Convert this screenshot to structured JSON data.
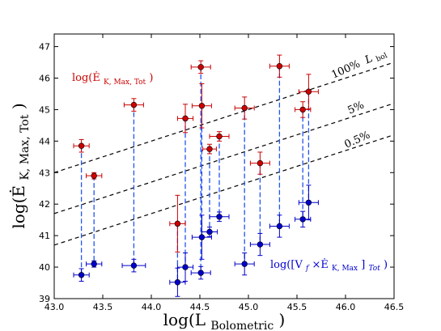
{
  "chart_data": {
    "type": "scatter",
    "xlabel": "log(L",
    "xlabel_sub": "Bolometric",
    "xlabel_close": ")",
    "ylabel": "log(Ė",
    "ylabel_sub": "K, Max, Tot",
    "ylabel_close": ")",
    "xlim": [
      43.0,
      46.5
    ],
    "ylim": [
      39,
      47.4
    ],
    "xticks": [
      43.0,
      43.5,
      44.0,
      44.5,
      45.0,
      45.5,
      46.0,
      46.5
    ],
    "xtick_labels": [
      "43.0",
      "43.5",
      "44.0",
      "44.5",
      "45.0",
      "45.5",
      "46.0",
      "46.5"
    ],
    "yticks": [
      39,
      40,
      41,
      42,
      43,
      44,
      45,
      46,
      47
    ],
    "ytick_labels": [
      "39",
      "40",
      "41",
      "42",
      "43",
      "44",
      "45",
      "46",
      "47"
    ],
    "grid": false,
    "colors": {
      "red_series": "#cc0000",
      "blue_series": "#0000cc",
      "connector": "#2255ee",
      "reference": "#000000"
    },
    "annotations": {
      "red_label": {
        "main": "log(Ė",
        "sub": "K, Max, Tot",
        "close": ")"
      },
      "blue_label": {
        "main": "log([V",
        "sub1": "f",
        "mid": " ×Ė",
        "sub2": "K, Max",
        "close": "]",
        "sub3": "Tot",
        "end": ")"
      }
    },
    "reference_lines": [
      {
        "label": "100%",
        "sym": "L",
        "sub": "bol",
        "y_at_43": 43.0,
        "y_at_46_5": 46.5
      },
      {
        "label": "5%",
        "y_at_43": 41.7,
        "y_at_46_5": 45.2
      },
      {
        "label": "0.5%",
        "y_at_43": 40.7,
        "y_at_46_5": 44.2
      }
    ],
    "series": [
      {
        "color": "red",
        "points": [
          {
            "x": 43.28,
            "y": 43.85,
            "xerr": 0.08,
            "yerr": 0.2
          },
          {
            "x": 43.41,
            "y": 42.9,
            "xerr": 0.08,
            "yerr": 0.1
          },
          {
            "x": 43.82,
            "y": 45.15,
            "xerr": 0.1,
            "yerr": 0.2
          },
          {
            "x": 44.27,
            "y": 41.38,
            "xerr": 0.08,
            "yerr": 0.9
          },
          {
            "x": 44.35,
            "y": 44.72,
            "xerr": 0.08,
            "yerr": 0.45
          },
          {
            "x": 44.51,
            "y": 46.35,
            "xerr": 0.1,
            "yerr": 0.2
          },
          {
            "x": 44.52,
            "y": 45.12,
            "xerr": 0.1,
            "yerr": 0.7
          },
          {
            "x": 44.6,
            "y": 43.75,
            "xerr": 0.07,
            "yerr": 0.15
          },
          {
            "x": 44.7,
            "y": 44.15,
            "xerr": 0.1,
            "yerr": 0.15
          },
          {
            "x": 44.96,
            "y": 45.05,
            "xerr": 0.1,
            "yerr": 0.35
          },
          {
            "x": 45.12,
            "y": 43.3,
            "xerr": 0.1,
            "yerr": 0.35
          },
          {
            "x": 45.32,
            "y": 46.38,
            "xerr": 0.1,
            "yerr": 0.35
          },
          {
            "x": 45.56,
            "y": 45.0,
            "xerr": 0.08,
            "yerr": 0.25
          },
          {
            "x": 45.62,
            "y": 45.57,
            "xerr": 0.1,
            "yerr": 0.55
          }
        ]
      },
      {
        "color": "blue",
        "points": [
          {
            "x": 43.28,
            "y": 39.75,
            "xerr": 0.08,
            "yerr": 0.2
          },
          {
            "x": 43.41,
            "y": 40.1,
            "xerr": 0.08,
            "yerr": 0.1
          },
          {
            "x": 43.82,
            "y": 40.05,
            "xerr": 0.12,
            "yerr": 0.2
          },
          {
            "x": 44.27,
            "y": 39.52,
            "xerr": 0.08,
            "yerr": 0.45
          },
          {
            "x": 44.35,
            "y": 40.0,
            "xerr": 0.08,
            "yerr": 0.45
          },
          {
            "x": 44.51,
            "y": 39.82,
            "xerr": 0.1,
            "yerr": 0.2
          },
          {
            "x": 44.52,
            "y": 40.95,
            "xerr": 0.1,
            "yerr": 0.7
          },
          {
            "x": 44.6,
            "y": 41.12,
            "xerr": 0.08,
            "yerr": 0.15
          },
          {
            "x": 44.7,
            "y": 41.6,
            "xerr": 0.1,
            "yerr": 0.15
          },
          {
            "x": 44.96,
            "y": 40.1,
            "xerr": 0.1,
            "yerr": 0.35
          },
          {
            "x": 45.12,
            "y": 40.72,
            "xerr": 0.1,
            "yerr": 0.35
          },
          {
            "x": 45.32,
            "y": 41.3,
            "xerr": 0.1,
            "yerr": 0.35
          },
          {
            "x": 45.56,
            "y": 41.52,
            "xerr": 0.08,
            "yerr": 0.25
          },
          {
            "x": 45.62,
            "y": 42.05,
            "xerr": 0.1,
            "yerr": 0.55
          }
        ]
      }
    ]
  }
}
